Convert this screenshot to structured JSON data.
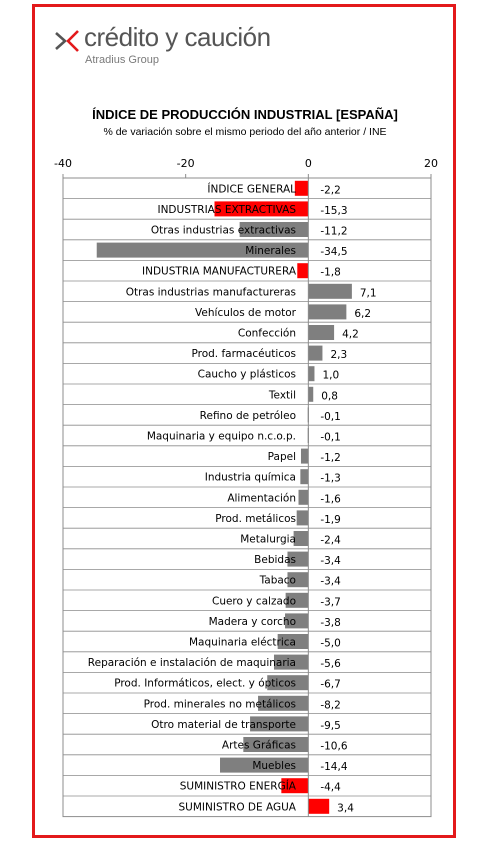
{
  "brand": {
    "name": "crédito y caución",
    "group": "Atradius Group",
    "accent_color": "#e3191b",
    "text_color": "#555555",
    "icon": "chevron-k-logo-icon"
  },
  "colors": {
    "bar_default": "#7f7f7f",
    "bar_highlight": "#ff0000",
    "frame": "#e3191b"
  },
  "chart_data": {
    "type": "bar",
    "orientation": "horizontal",
    "title": "ÍNDICE DE PRODUCCIÓN INDUSTRIAL [ESPAÑA]",
    "subtitle": "% de variación sobre el mismo periodo del año anterior / INE",
    "xlim": [
      -40,
      20
    ],
    "xticks": [
      "-40",
      "-20",
      "0",
      "20"
    ],
    "xtick_values": [
      -40,
      -20,
      0,
      20
    ],
    "grid": "horizontal",
    "categories": [
      "ÍNDICE GENERAL",
      "INDUSTRIAS EXTRACTIVAS",
      "Otras industrias extractivas",
      "Minerales",
      "INDUSTRIA MANUFACTURERA",
      "Otras industrias manufactureras",
      "Vehículos de motor",
      "Confección",
      "Prod. farmacéuticos",
      "Caucho y plásticos",
      "Textil",
      "Refino de petróleo",
      "Maquinaria y equipo n.c.o.p.",
      "Papel",
      "Industria química",
      "Alimentación",
      "Prod. metálicos",
      "Metalurgia",
      "Bebidas",
      "Tabaco",
      "Cuero y calzado",
      "Madera y corcho",
      "Maquinaria eléctrica",
      "Reparación e instalación de maquinaria",
      "Prod. Informáticos, elect. y ópticos",
      "Prod. minerales no metálicos",
      "Otro material de transporte",
      "Artes Gráficas",
      "Muebles",
      "SUMINISTRO ENERGÍA",
      "SUMINISTRO DE AGUA"
    ],
    "values": [
      -2.2,
      -15.3,
      -11.2,
      -34.5,
      -1.8,
      7.1,
      6.2,
      4.2,
      2.3,
      1.0,
      0.8,
      -0.1,
      -0.1,
      -1.2,
      -1.3,
      -1.6,
      -1.9,
      -2.4,
      -3.4,
      -3.4,
      -3.7,
      -3.8,
      -5.0,
      -5.6,
      -6.7,
      -8.2,
      -9.5,
      -10.6,
      -14.4,
      -4.4,
      3.4
    ],
    "value_labels": [
      "-2,2",
      "-15,3",
      "-11,2",
      "-34,5",
      "-1,8",
      "7,1",
      "6,2",
      "4,2",
      "2,3",
      "1,0",
      "0,8",
      "-0,1",
      "-0,1",
      "-1,2",
      "-1,3",
      "-1,6",
      "-1,9",
      "-2,4",
      "-3,4",
      "-3,4",
      "-3,7",
      "-3,8",
      "-5,0",
      "-5,6",
      "-6,7",
      "-8,2",
      "-9,5",
      "-10,6",
      "-14,4",
      "-4,4",
      "3,4"
    ],
    "highlighted": [
      true,
      true,
      false,
      false,
      true,
      false,
      false,
      false,
      false,
      false,
      false,
      false,
      false,
      false,
      false,
      false,
      false,
      false,
      false,
      false,
      false,
      false,
      false,
      false,
      false,
      false,
      false,
      false,
      false,
      true,
      true
    ]
  }
}
